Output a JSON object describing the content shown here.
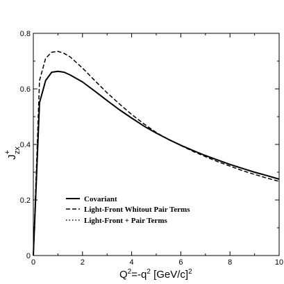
{
  "chart_data": {
    "type": "line",
    "title": "",
    "xlabel": "Q",
    "xlabel_sup1": "2",
    "xlabel_mid": "=-q",
    "xlabel_sup2": "2",
    "xlabel_unit": " [GeV/c]",
    "xlabel_sup3": "2",
    "ylabel": "J",
    "ylabel_sup": "+",
    "ylabel_sub": "zx",
    "xlim": [
      0,
      10
    ],
    "ylim": [
      0,
      0.8
    ],
    "xticks": [
      0,
      2,
      4,
      6,
      8,
      10
    ],
    "yticks": [
      0,
      0.2,
      0.4,
      0.6,
      0.8
    ],
    "xtick_labels": [
      "0",
      "2",
      "4",
      "6",
      "8",
      "10"
    ],
    "ytick_labels": [
      "0",
      "0.2",
      "0.4",
      "0.6",
      "0.8"
    ],
    "grid": false,
    "legend_position": "bottom-left",
    "series": [
      {
        "name": "Covariant",
        "style": "solid",
        "x": [
          0,
          0.25,
          0.5,
          0.75,
          1.0,
          1.25,
          1.5,
          2,
          2.5,
          3,
          3.5,
          4,
          4.5,
          5,
          5.5,
          6,
          6.5,
          7,
          7.5,
          8,
          8.5,
          9,
          9.5,
          10
        ],
        "y": [
          0,
          0.55,
          0.63,
          0.66,
          0.663,
          0.66,
          0.65,
          0.625,
          0.592,
          0.558,
          0.525,
          0.495,
          0.466,
          0.441,
          0.418,
          0.397,
          0.378,
          0.36,
          0.344,
          0.328,
          0.314,
          0.3,
          0.288,
          0.275
        ]
      },
      {
        "name": "Light-Front Whitout Pair Terms",
        "style": "dashed",
        "x": [
          0,
          0.25,
          0.5,
          0.75,
          1.0,
          1.25,
          1.5,
          2,
          2.5,
          3,
          3.5,
          4,
          4.5,
          5,
          5.5,
          6,
          6.5,
          7,
          7.5,
          8,
          8.5,
          9,
          9.5,
          10
        ],
        "y": [
          0,
          0.63,
          0.71,
          0.732,
          0.735,
          0.728,
          0.715,
          0.675,
          0.63,
          0.586,
          0.546,
          0.508,
          0.474,
          0.443,
          0.418,
          0.396,
          0.375,
          0.356,
          0.338,
          0.322,
          0.306,
          0.292,
          0.279,
          0.267
        ]
      },
      {
        "name": "Light-Front + Pair Terms",
        "style": "dotted",
        "x": [
          0,
          0.25,
          0.5,
          0.75,
          1.0,
          1.25,
          1.5,
          2,
          2.5,
          3,
          3.5,
          4,
          4.5,
          5,
          5.5,
          6,
          6.5,
          7,
          7.5,
          8,
          8.5,
          9,
          9.5,
          10
        ],
        "y": [
          0,
          0.55,
          0.63,
          0.66,
          0.663,
          0.66,
          0.65,
          0.625,
          0.592,
          0.558,
          0.525,
          0.495,
          0.466,
          0.441,
          0.418,
          0.397,
          0.378,
          0.36,
          0.344,
          0.328,
          0.314,
          0.3,
          0.288,
          0.275
        ]
      }
    ]
  }
}
